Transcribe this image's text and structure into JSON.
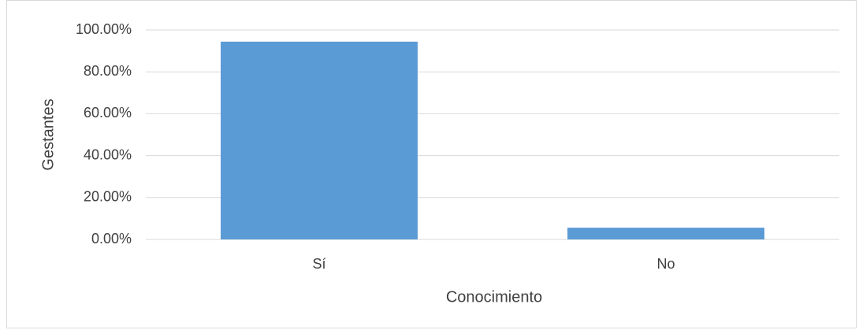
{
  "chart_data": {
    "type": "bar",
    "categories": [
      "Sí",
      "No"
    ],
    "values": [
      94.4,
      5.6
    ],
    "color": "#5b9bd5",
    "xlabel": "Conocimiento",
    "ylabel": "Gestantes",
    "ylim": [
      0,
      100
    ],
    "yticks": [
      {
        "value": 0,
        "label": "0.00%"
      },
      {
        "value": 20,
        "label": "20.00%"
      },
      {
        "value": 40,
        "label": "40.00%"
      },
      {
        "value": 60,
        "label": "60.00%"
      },
      {
        "value": 80,
        "label": "80.00%"
      },
      {
        "value": 100,
        "label": "100.00%"
      }
    ],
    "grid": true
  }
}
